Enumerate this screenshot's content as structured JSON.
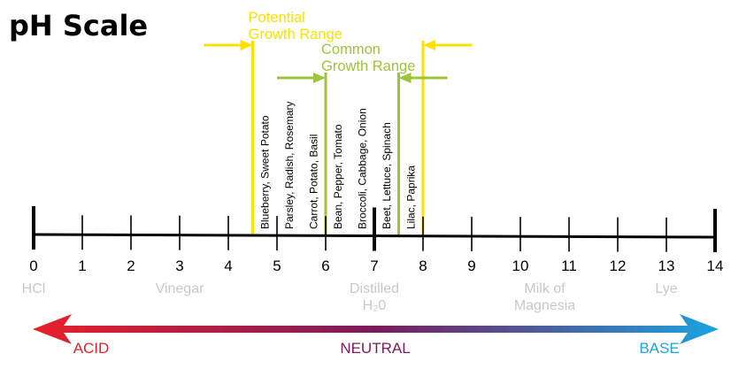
{
  "title": "pH Scale",
  "scale": {
    "min": 0,
    "max": 14,
    "ticks": [
      "0",
      "1",
      "2",
      "3",
      "4",
      "5",
      "6",
      "7",
      "8",
      "9",
      "10",
      "11",
      "12",
      "13",
      "14"
    ]
  },
  "references": [
    {
      "ph": 0,
      "lines": [
        "HCl"
      ]
    },
    {
      "ph": 3,
      "lines": [
        "Vinegar"
      ]
    },
    {
      "ph": 7,
      "lines": [
        "Distilled",
        "H₂0"
      ]
    },
    {
      "ph": 10.5,
      "lines": [
        "Milk of",
        "Magnesia"
      ]
    },
    {
      "ph": 13,
      "lines": [
        "Lye"
      ]
    }
  ],
  "ranges": {
    "potential": {
      "lines": [
        "Potential",
        "Growth Range"
      ],
      "from": 4.5,
      "to": 8.0,
      "color": "#ffe000"
    },
    "common": {
      "lines": [
        "Common",
        "Growth Range"
      ],
      "from": 6.0,
      "to": 7.5,
      "color": "#9dc43a"
    }
  },
  "plants": [
    {
      "ph": 5.0,
      "label": "Blueberry, Sweet Potato"
    },
    {
      "ph": 5.5,
      "label": "Parsley, Radish, Rosemary"
    },
    {
      "ph": 6.0,
      "label": "Carrot, Potato, Basil"
    },
    {
      "ph": 6.5,
      "label": "Bean, Pepper, Tomato"
    },
    {
      "ph": 7.0,
      "label": "Broccoli, Cabbage, Onion"
    },
    {
      "ph": 7.5,
      "label": "Beet, Lettuce, Spinach"
    },
    {
      "ph": 8.0,
      "label": "Lilac, Paprika"
    }
  ],
  "gradient": {
    "acid_label": "ACID",
    "neutral_label": "NEUTRAL",
    "base_label": "BASE",
    "acid_color": "#e8202a",
    "neutral_color": "#7a1c5a",
    "base_color": "#1aa3e0"
  }
}
